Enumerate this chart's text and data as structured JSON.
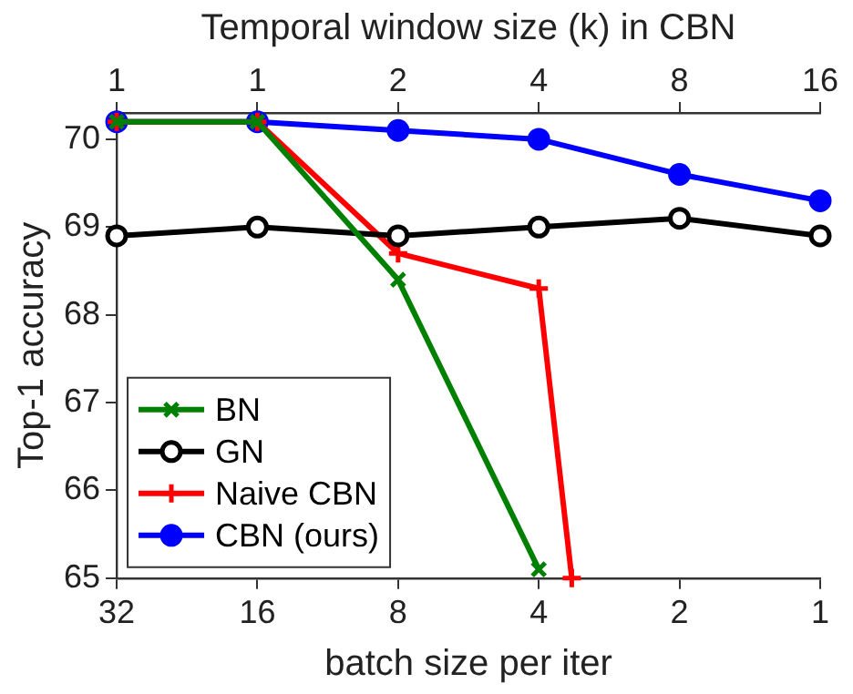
{
  "chart_data": {
    "type": "line",
    "xlabel": "batch size per iter",
    "x2label": "Temporal window size (k) in CBN",
    "ylabel": "Top-1 accuracy",
    "log": "x",
    "xlim": [
      32,
      1
    ],
    "xticks": [
      32,
      16,
      8,
      4,
      2,
      1
    ],
    "annotations": [
      "1",
      "1",
      "2",
      "4",
      "8",
      "16"
    ],
    "ylim": [
      65,
      70.3
    ],
    "yticks": [
      65,
      66,
      67,
      68,
      69,
      70
    ],
    "grid": false,
    "legend": "bottom left",
    "line_style": "solid",
    "series": [
      {
        "name": "BN",
        "color": "#008000",
        "marker": "cross",
        "x": [
          32,
          16,
          8,
          4
        ],
        "values": [
          70.2,
          70.2,
          68.4,
          65.1
        ]
      },
      {
        "name": "GN",
        "color": "#000000",
        "marker": "circle",
        "x": [
          32,
          16,
          8,
          4,
          2,
          1
        ],
        "values": [
          68.9,
          69.0,
          68.9,
          69.0,
          69.1,
          68.9
        ]
      },
      {
        "name": "Naive CBN",
        "color": "#ff0000",
        "marker": "plus",
        "x": [
          32,
          16,
          8,
          4,
          3.4
        ],
        "values": [
          70.2,
          70.2,
          68.7,
          68.3,
          65
        ]
      },
      {
        "name": "CBN (ours)",
        "color": "#0000ff",
        "marker": "dot",
        "x": [
          32,
          16,
          8,
          4,
          2,
          1
        ],
        "values": [
          70.2,
          70.2,
          70.1,
          70.0,
          69.6,
          69.3
        ]
      }
    ]
  }
}
